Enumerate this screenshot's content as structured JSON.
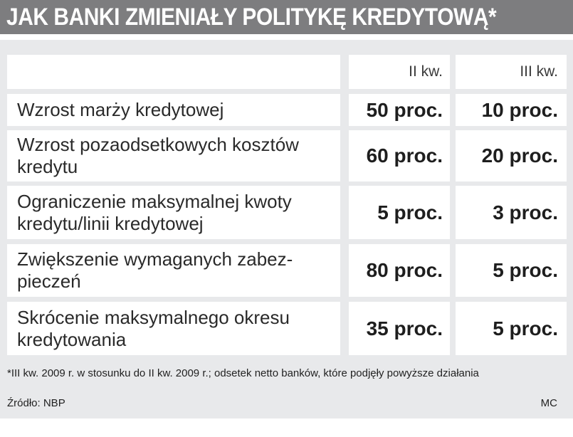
{
  "title": "JAK BANKI ZMIENIAŁY POLITYKĘ KREDYTOWĄ*",
  "columns": [
    "II kw.",
    "III kw."
  ],
  "chart_data": {
    "type": "table",
    "title": "JAK BANKI ZMIENIAŁY POLITYKĘ KREDYTOWĄ*",
    "columns": [
      "II kw.",
      "III kw."
    ],
    "rows": [
      {
        "label": "Wzrost marży kredytowej",
        "values": [
          "50 proc.",
          "10 proc."
        ]
      },
      {
        "label": "Wzrost pozaodsetkowych kosztów kredytu",
        "values": [
          "60 proc.",
          "20 proc."
        ]
      },
      {
        "label": "Ograniczenie maksymalnej kwoty kredytu/linii kredytowej",
        "values": [
          "5 proc.",
          "3 proc."
        ]
      },
      {
        "label": "Zwiększenie wymaganych zabez-pieczeń",
        "values": [
          "80 proc.",
          "5 proc."
        ]
      },
      {
        "label": "Skrócenie maksymalnego okresu kredytowania",
        "values": [
          "35 proc.",
          "5 proc."
        ]
      }
    ]
  },
  "footnote": "*III kw. 2009 r. w stosunku do II kw. 2009 r.; odsetek netto banków, które podjęły powyższe działania",
  "source": "Źródło: NBP",
  "author": "MC"
}
